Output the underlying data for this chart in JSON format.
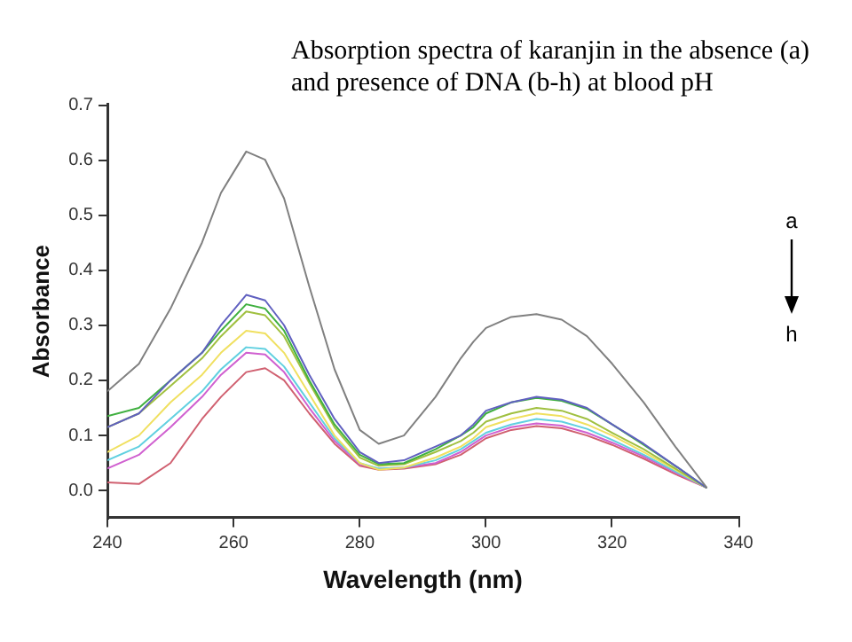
{
  "chart_data": {
    "type": "line",
    "title": "Absorption spectra of karanjin in the absence (a) and presence of DNA (b-h) at blood pH",
    "xlabel": "Wavelength (nm)",
    "ylabel": "Absorbance",
    "annotations": [
      "a",
      "h"
    ],
    "x": [
      240,
      245,
      250,
      255,
      258,
      262,
      265,
      268,
      272,
      276,
      280,
      283,
      287,
      292,
      296,
      298,
      300,
      304,
      308,
      312,
      316,
      320,
      325,
      330,
      335
    ],
    "series": [
      {
        "color": "#808080",
        "values": [
          0.18,
          0.23,
          0.33,
          0.45,
          0.54,
          0.615,
          0.6,
          0.53,
          0.37,
          0.22,
          0.11,
          0.085,
          0.1,
          0.17,
          0.24,
          0.27,
          0.295,
          0.315,
          0.32,
          0.31,
          0.28,
          0.23,
          0.16,
          0.08,
          0.005
        ]
      },
      {
        "color": "#6060c0",
        "values": [
          0.115,
          0.14,
          0.2,
          0.25,
          0.3,
          0.355,
          0.345,
          0.3,
          0.21,
          0.13,
          0.07,
          0.05,
          0.055,
          0.08,
          0.1,
          0.12,
          0.145,
          0.16,
          0.17,
          0.165,
          0.15,
          0.12,
          0.085,
          0.045,
          0.005
        ]
      },
      {
        "color": "#40b040",
        "values": [
          0.135,
          0.15,
          0.2,
          0.25,
          0.29,
          0.338,
          0.33,
          0.29,
          0.2,
          0.12,
          0.065,
          0.048,
          0.05,
          0.075,
          0.1,
          0.115,
          0.14,
          0.16,
          0.168,
          0.163,
          0.148,
          0.12,
          0.083,
          0.045,
          0.005
        ]
      },
      {
        "color": "#a0c040",
        "values": [
          0.115,
          0.14,
          0.19,
          0.24,
          0.28,
          0.325,
          0.318,
          0.28,
          0.195,
          0.115,
          0.06,
          0.045,
          0.048,
          0.07,
          0.09,
          0.105,
          0.125,
          0.14,
          0.15,
          0.145,
          0.13,
          0.105,
          0.075,
          0.04,
          0.005
        ]
      },
      {
        "color": "#f0e060",
        "values": [
          0.07,
          0.1,
          0.16,
          0.21,
          0.25,
          0.29,
          0.285,
          0.25,
          0.175,
          0.1,
          0.05,
          0.038,
          0.042,
          0.06,
          0.08,
          0.095,
          0.115,
          0.13,
          0.14,
          0.135,
          0.12,
          0.1,
          0.07,
          0.038,
          0.005
        ]
      },
      {
        "color": "#60d0e0",
        "values": [
          0.055,
          0.08,
          0.13,
          0.18,
          0.22,
          0.26,
          0.257,
          0.225,
          0.16,
          0.095,
          0.05,
          0.04,
          0.042,
          0.055,
          0.075,
          0.09,
          0.105,
          0.12,
          0.13,
          0.125,
          0.112,
          0.092,
          0.065,
          0.035,
          0.005
        ]
      },
      {
        "color": "#d060d0",
        "values": [
          0.04,
          0.065,
          0.115,
          0.17,
          0.21,
          0.25,
          0.247,
          0.215,
          0.15,
          0.09,
          0.048,
          0.04,
          0.042,
          0.05,
          0.07,
          0.085,
          0.1,
          0.115,
          0.122,
          0.118,
          0.105,
          0.087,
          0.062,
          0.033,
          0.005
        ]
      },
      {
        "color": "#d06070",
        "values": [
          0.015,
          0.012,
          0.05,
          0.13,
          0.17,
          0.215,
          0.222,
          0.2,
          0.14,
          0.085,
          0.045,
          0.038,
          0.04,
          0.048,
          0.065,
          0.08,
          0.095,
          0.11,
          0.117,
          0.113,
          0.1,
          0.083,
          0.058,
          0.03,
          0.005
        ]
      }
    ],
    "xlim": [
      240,
      340
    ],
    "xticks": [
      240,
      260,
      280,
      300,
      320,
      340
    ],
    "ylim": [
      -0.05,
      0.7
    ],
    "yticks": [
      {
        "value": 0,
        "label": "0.0"
      },
      0.1,
      0.2,
      0.3,
      0.4,
      0.5,
      0.6,
      0.7
    ],
    "grid": false,
    "legend": false,
    "marker": "none",
    "line_style": "solid"
  }
}
